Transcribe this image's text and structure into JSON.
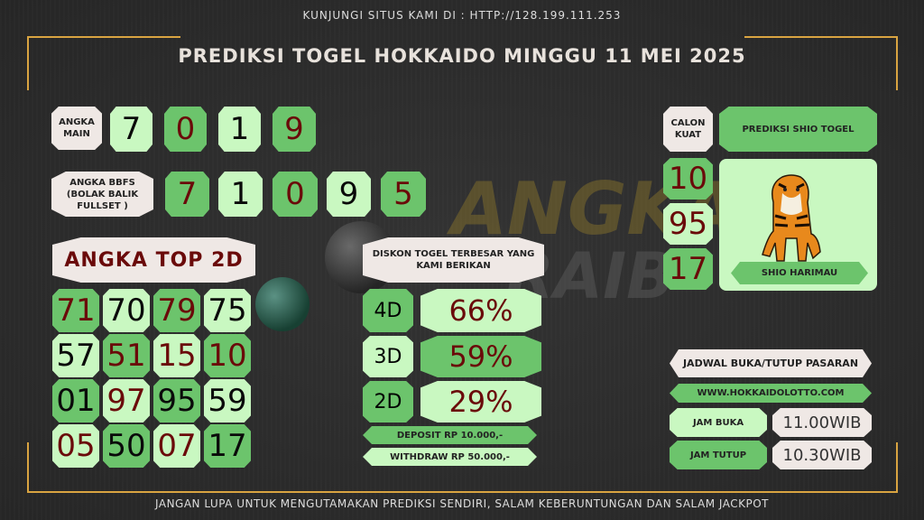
{
  "header": {
    "visit": "KUNJUNGI SITUS KAMI DI : HTTP://128.199.111.253",
    "title": "PREDIKSI TOGEL HOKKAIDO MINGGU 11 MEI 2025"
  },
  "watermark": {
    "line1": "ANGKA",
    "line2": "RAIB"
  },
  "angka_main": {
    "label": "ANGKA MAIN",
    "digits": [
      "7",
      "0",
      "1",
      "9"
    ]
  },
  "bbfs": {
    "label": "ANGKA BBFS (BOLAK BALIK FULLSET )",
    "digits": [
      "7",
      "1",
      "0",
      "9",
      "5"
    ]
  },
  "top2d": {
    "label": "ANGKA TOP 2D",
    "numbers": [
      "71",
      "70",
      "79",
      "75",
      "57",
      "51",
      "15",
      "10",
      "01",
      "97",
      "95",
      "59",
      "05",
      "50",
      "07",
      "17"
    ]
  },
  "diskon": {
    "label": "DISKON TOGEL TERBESAR YANG KAMI BERIKAN",
    "rows": [
      {
        "type": "4D",
        "value": "66%"
      },
      {
        "type": "3D",
        "value": "59%"
      },
      {
        "type": "2D",
        "value": "29%"
      }
    ],
    "deposit": "DEPOSIT RP 10.000,-",
    "withdraw": "WITHDRAW RP 50.000,-"
  },
  "calon_kuat": {
    "label": "CALON KUAT",
    "numbers": [
      "10",
      "95",
      "17"
    ]
  },
  "shio": {
    "label": "PREDIKSI SHIO TOGEL",
    "name": "SHIO HARIMAU",
    "icon": "tiger-icon"
  },
  "jadwal": {
    "label": "JADWAL BUKA/TUTUP PASARAN",
    "website": "WWW.HOKKAIDOLOTTO.COM",
    "buka_label": "JAM BUKA",
    "buka": "11.00WIB",
    "tutup_label": "JAM TUTUP",
    "tutup": "10.30WIB"
  },
  "footer": "JANGAN LUPA UNTUK MENGUTAMAKAN PREDIKSI SENDIRI, SALAM KEBERUNTUNGAN DAN SALAM JACKPOT",
  "colors": {
    "light_green": "#c9f8c1",
    "dark_green": "#6cc46c",
    "red_text": "#6a0a0a",
    "gold": "#d9a441"
  }
}
